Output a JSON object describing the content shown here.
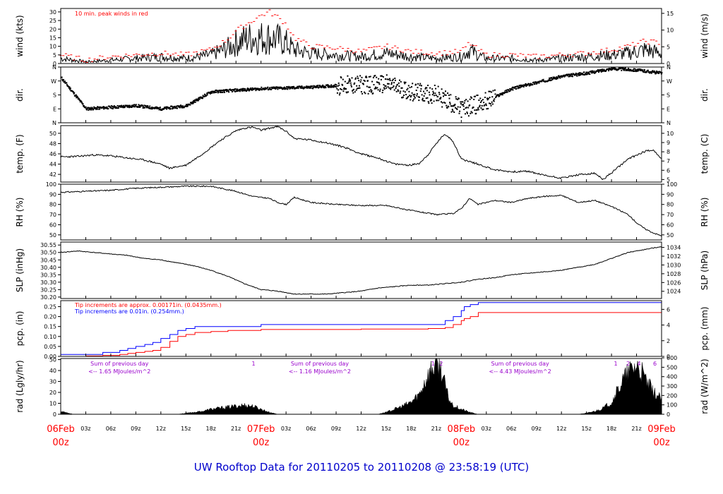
{
  "figure": {
    "title": "UW Rooftop Data for 20110205  to  20110208 @ 23:58:19  (UTC)",
    "title_color": "#0000cc"
  },
  "time_axis": {
    "hours_span": 72,
    "hour_ticks": [
      "03z",
      "06z",
      "09z",
      "12z",
      "15z",
      "18z",
      "21z"
    ],
    "day_labels": [
      {
        "hour": 0,
        "date": "06Feb",
        "time": "00z"
      },
      {
        "hour": 24,
        "date": "07Feb",
        "time": "00z"
      },
      {
        "hour": 48,
        "date": "08Feb",
        "time": "00z"
      },
      {
        "hour": 72,
        "date": "09Feb",
        "time": "00z"
      }
    ],
    "day_label_color": "#ff0000"
  },
  "panels": {
    "wind": {
      "left_label": "wind (kts)",
      "right_label": "wind (m/s)",
      "left_ticks": [
        "0",
        "5",
        "10",
        "15",
        "20",
        "25",
        "30"
      ],
      "right_ticks": [
        "0",
        "5",
        "10",
        "15"
      ],
      "note": "10 min. peak winds in red",
      "note_color": "#ff0000"
    },
    "dir": {
      "left_label": "dir.",
      "right_label": "dir.",
      "ticks": [
        "N",
        "E",
        "S",
        "W",
        "N"
      ]
    },
    "temp": {
      "left_label": "temp. (F)",
      "right_label": "temp. (C)",
      "left_ticks": [
        "42",
        "44",
        "46",
        "48",
        "50"
      ],
      "right_ticks": [
        "5",
        "6",
        "7",
        "8",
        "9",
        "10"
      ]
    },
    "rh": {
      "left_label": "RH (%)",
      "right_label": "RH (%)",
      "left_ticks": [
        "50",
        "60",
        "70",
        "80",
        "90",
        "100"
      ],
      "right_ticks": [
        "50",
        "60",
        "70",
        "80",
        "90",
        "100"
      ]
    },
    "slp": {
      "left_label": "SLP (inHg)",
      "right_label": "SLP (hPa)",
      "left_ticks": [
        "30.20",
        "30.25",
        "30.30",
        "30.35",
        "30.40",
        "30.45",
        "30.50",
        "30.55"
      ],
      "right_ticks": [
        "1024",
        "1026",
        "1028",
        "1030",
        "1032",
        "1034"
      ]
    },
    "pcp": {
      "left_label": "pcp. (in)",
      "right_label": "pcp. (mm)",
      "left_ticks": [
        "0.00",
        "0.05",
        "0.10",
        "0.15",
        "0.20",
        "0.25"
      ],
      "right_ticks": [
        "0",
        "2",
        "4",
        "6"
      ],
      "note_red": "Tip increments are approx. 0.00171in. (0.0435mm.)",
      "note_blue": "Tip increments are 0.01in. (0.254mm.)",
      "red_color": "#ff0000",
      "blue_color": "#0000ff"
    },
    "rad": {
      "left_label": "rad (Lgly/hr)",
      "right_label": "rad (W/m^2)",
      "left_ticks": [
        "0",
        "10",
        "20",
        "30",
        "40",
        "50"
      ],
      "right_ticks": [
        "0",
        "100",
        "200",
        "300",
        "400",
        "500",
        "600"
      ],
      "sum_color": "#9900cc",
      "sums": [
        {
          "hour": 4,
          "line1": "Sum of previous day",
          "line2": "<-- 1.65 MJoules/m^2"
        },
        {
          "hour": 28,
          "line1": "Sum of previous day",
          "line2": "<-- 1.16 MJoules/m^2"
        },
        {
          "hour": 52,
          "line1": "Sum of previous day",
          "line2": "<-- 4.43 MJoules/m^2"
        }
      ],
      "markers": [
        {
          "hour": 23.1,
          "label": "1"
        },
        {
          "hour": 44.6,
          "label": "1"
        },
        {
          "hour": 45.6,
          "label": "2"
        },
        {
          "hour": 66.5,
          "label": "1"
        },
        {
          "hour": 68.0,
          "label": "2"
        },
        {
          "hour": 69.3,
          "label": "4"
        },
        {
          "hour": 71.2,
          "label": "6"
        }
      ]
    }
  },
  "chart_data": {
    "type": "line",
    "x_unit": "hours since 06Feb 00z",
    "x_range": [
      0,
      72
    ],
    "series": [
      {
        "name": "wind (kts)",
        "ylim": [
          0,
          32
        ],
        "x": [
          0,
          3,
          6,
          9,
          12,
          15,
          18,
          20,
          21,
          22,
          23,
          24,
          25,
          26,
          27,
          28,
          30,
          33,
          36,
          39,
          42,
          45,
          48,
          49,
          50,
          51,
          54,
          57,
          60,
          63,
          66,
          68,
          70,
          72
        ],
        "values": [
          3,
          1,
          2,
          3,
          4,
          3,
          5,
          9,
          12,
          14,
          15,
          15,
          15,
          14,
          12,
          8,
          6,
          5,
          4,
          6,
          4,
          3,
          4,
          8,
          5,
          3,
          3,
          2,
          3,
          4,
          5,
          6,
          8,
          6
        ]
      },
      {
        "name": "10 min. peak winds in red",
        "ylim": [
          0,
          32
        ],
        "x": [
          0,
          3,
          6,
          9,
          12,
          15,
          18,
          20,
          21,
          22,
          23,
          24,
          25,
          26,
          27,
          28,
          30,
          33,
          36,
          39,
          42,
          45,
          48,
          49,
          50,
          51,
          54,
          57,
          60,
          63,
          66,
          68,
          70,
          72
        ],
        "values": [
          5,
          2,
          4,
          5,
          6,
          5,
          8,
          14,
          19,
          22,
          25,
          28,
          30,
          27,
          23,
          15,
          10,
          9,
          7,
          10,
          7,
          6,
          7,
          12,
          8,
          5,
          5,
          4,
          5,
          6,
          8,
          10,
          13,
          12
        ]
      },
      {
        "name": "dir.",
        "ylim": [
          0,
          360
        ],
        "x": [
          0,
          3,
          6,
          9,
          12,
          15,
          18,
          21,
          24,
          27,
          30,
          33,
          36,
          39,
          42,
          45,
          48,
          51,
          54,
          57,
          60,
          63,
          66,
          69,
          72
        ],
        "values": [
          290,
          90,
          100,
          110,
          90,
          110,
          200,
          210,
          220,
          225,
          230,
          240,
          245,
          250,
          200,
          180,
          90,
          140,
          220,
          260,
          300,
          320,
          350,
          340,
          320
        ]
      },
      {
        "name": "temp. (F)",
        "ylim": [
          40.5,
          51.5
        ],
        "x": [
          0,
          2,
          4,
          6,
          8,
          10,
          12,
          13,
          15,
          17,
          19,
          21,
          22,
          23,
          24,
          25,
          26,
          27,
          28,
          30,
          32,
          34,
          36,
          38,
          40,
          42,
          43,
          44,
          45,
          46,
          47,
          48,
          50,
          52,
          54,
          56,
          58,
          60,
          62,
          64,
          65,
          66,
          68,
          70,
          71,
          72
        ],
        "values": [
          45.4,
          45.5,
          45.8,
          45.6,
          45.2,
          44.8,
          44,
          43.2,
          43.8,
          46,
          48.5,
          50.5,
          51,
          51.2,
          50.6,
          51,
          51.3,
          50.4,
          49,
          48.7,
          48.1,
          47.3,
          46,
          45.2,
          44,
          43.8,
          44.2,
          45.8,
          48,
          49.9,
          48.5,
          45,
          44,
          42.9,
          42.5,
          42.6,
          41.8,
          41.3,
          41.9,
          42.2,
          41,
          42.3,
          45,
          46.5,
          46.8,
          45
        ]
      },
      {
        "name": "RH (%)",
        "ylim": [
          45,
          100
        ],
        "x": [
          0,
          3,
          6,
          9,
          12,
          15,
          18,
          21,
          23,
          24,
          25,
          26,
          27,
          28,
          30,
          33,
          36,
          39,
          42,
          45,
          47,
          48,
          49,
          50,
          52,
          54,
          56,
          58,
          60,
          62,
          64,
          66,
          68,
          69,
          70,
          71,
          72
        ],
        "values": [
          92,
          93,
          94,
          96,
          97,
          98,
          98,
          93,
          88,
          87,
          86,
          82,
          80,
          87,
          82,
          80,
          79,
          79,
          74,
          70,
          71,
          76,
          86,
          80,
          84,
          82,
          86,
          88,
          89,
          82,
          84,
          78,
          70,
          62,
          56,
          52,
          49
        ]
      },
      {
        "name": "SLP (inHg)",
        "ylim": [
          30.19,
          30.57
        ],
        "x": [
          0,
          2,
          4,
          6,
          8,
          10,
          12,
          14,
          16,
          18,
          20,
          22,
          24,
          26,
          28,
          30,
          32,
          34,
          36,
          38,
          40,
          42,
          44,
          46,
          48,
          50,
          52,
          54,
          56,
          58,
          60,
          62,
          64,
          66,
          68,
          70,
          72
        ],
        "values": [
          30.5,
          30.51,
          30.5,
          30.49,
          30.48,
          30.46,
          30.45,
          30.43,
          30.41,
          30.38,
          30.34,
          30.29,
          30.25,
          30.24,
          30.22,
          30.22,
          30.22,
          30.23,
          30.24,
          30.26,
          30.27,
          30.28,
          30.28,
          30.29,
          30.3,
          30.32,
          30.33,
          30.35,
          30.36,
          30.37,
          30.38,
          30.4,
          30.42,
          30.46,
          30.5,
          30.52,
          30.54
        ]
      },
      {
        "name": "Tip increments are approx. 0.00171in. (0.0435mm.)",
        "ylim": [
          0,
          0.28
        ],
        "x": [
          0,
          3,
          5,
          7,
          8,
          9,
          10,
          11,
          12,
          13,
          14,
          15,
          16,
          18,
          20,
          24,
          30,
          36,
          42,
          44,
          46,
          47,
          48,
          48.3,
          49,
          50,
          54,
          60,
          66,
          72
        ],
        "values": [
          0,
          0.002,
          0.005,
          0.01,
          0.015,
          0.02,
          0.025,
          0.03,
          0.045,
          0.075,
          0.1,
          0.11,
          0.12,
          0.125,
          0.13,
          0.135,
          0.135,
          0.137,
          0.137,
          0.14,
          0.145,
          0.16,
          0.18,
          0.19,
          0.2,
          0.22,
          0.22,
          0.22,
          0.22,
          0.22
        ]
      },
      {
        "name": "Tip increments are 0.01in. (0.254mm.)",
        "ylim": [
          0,
          0.28
        ],
        "x": [
          0,
          3,
          5,
          7,
          8,
          9,
          10,
          11,
          12,
          13,
          14,
          15,
          16,
          18,
          20,
          24,
          30,
          36,
          42,
          44,
          46,
          47,
          48,
          48.3,
          49,
          50,
          54,
          60,
          66,
          72
        ],
        "values": [
          0.01,
          0.01,
          0.02,
          0.03,
          0.04,
          0.05,
          0.06,
          0.07,
          0.09,
          0.11,
          0.13,
          0.14,
          0.15,
          0.15,
          0.15,
          0.16,
          0.16,
          0.16,
          0.16,
          0.16,
          0.18,
          0.2,
          0.23,
          0.25,
          0.26,
          0.27,
          0.27,
          0.27,
          0.27,
          0.27
        ]
      },
      {
        "name": "rad (Lgly/hr)",
        "ylim": [
          0,
          51
        ],
        "x": [
          0,
          0.5,
          1,
          1.5,
          2,
          14,
          15,
          16,
          17,
          18,
          19,
          20,
          21,
          22,
          23,
          24,
          25,
          26,
          38,
          39,
          40,
          41,
          42,
          43,
          43.5,
          44,
          44.5,
          45,
          45.5,
          46,
          46.5,
          47,
          48,
          49,
          49.5,
          50,
          62,
          63,
          64,
          65,
          66,
          66.5,
          67,
          67.5,
          68,
          68.5,
          69,
          69.5,
          70,
          70.5,
          71,
          72
        ],
        "values": [
          3,
          2,
          1,
          0,
          0,
          0,
          1,
          2,
          3,
          5,
          6,
          7,
          8,
          9,
          8,
          5,
          2,
          0,
          0,
          2,
          5,
          8,
          12,
          20,
          30,
          38,
          45,
          50,
          47,
          30,
          15,
          9,
          5,
          2,
          1,
          0,
          0,
          1,
          3,
          6,
          12,
          20,
          28,
          35,
          40,
          45,
          48,
          42,
          35,
          28,
          22,
          15
        ]
      }
    ]
  }
}
